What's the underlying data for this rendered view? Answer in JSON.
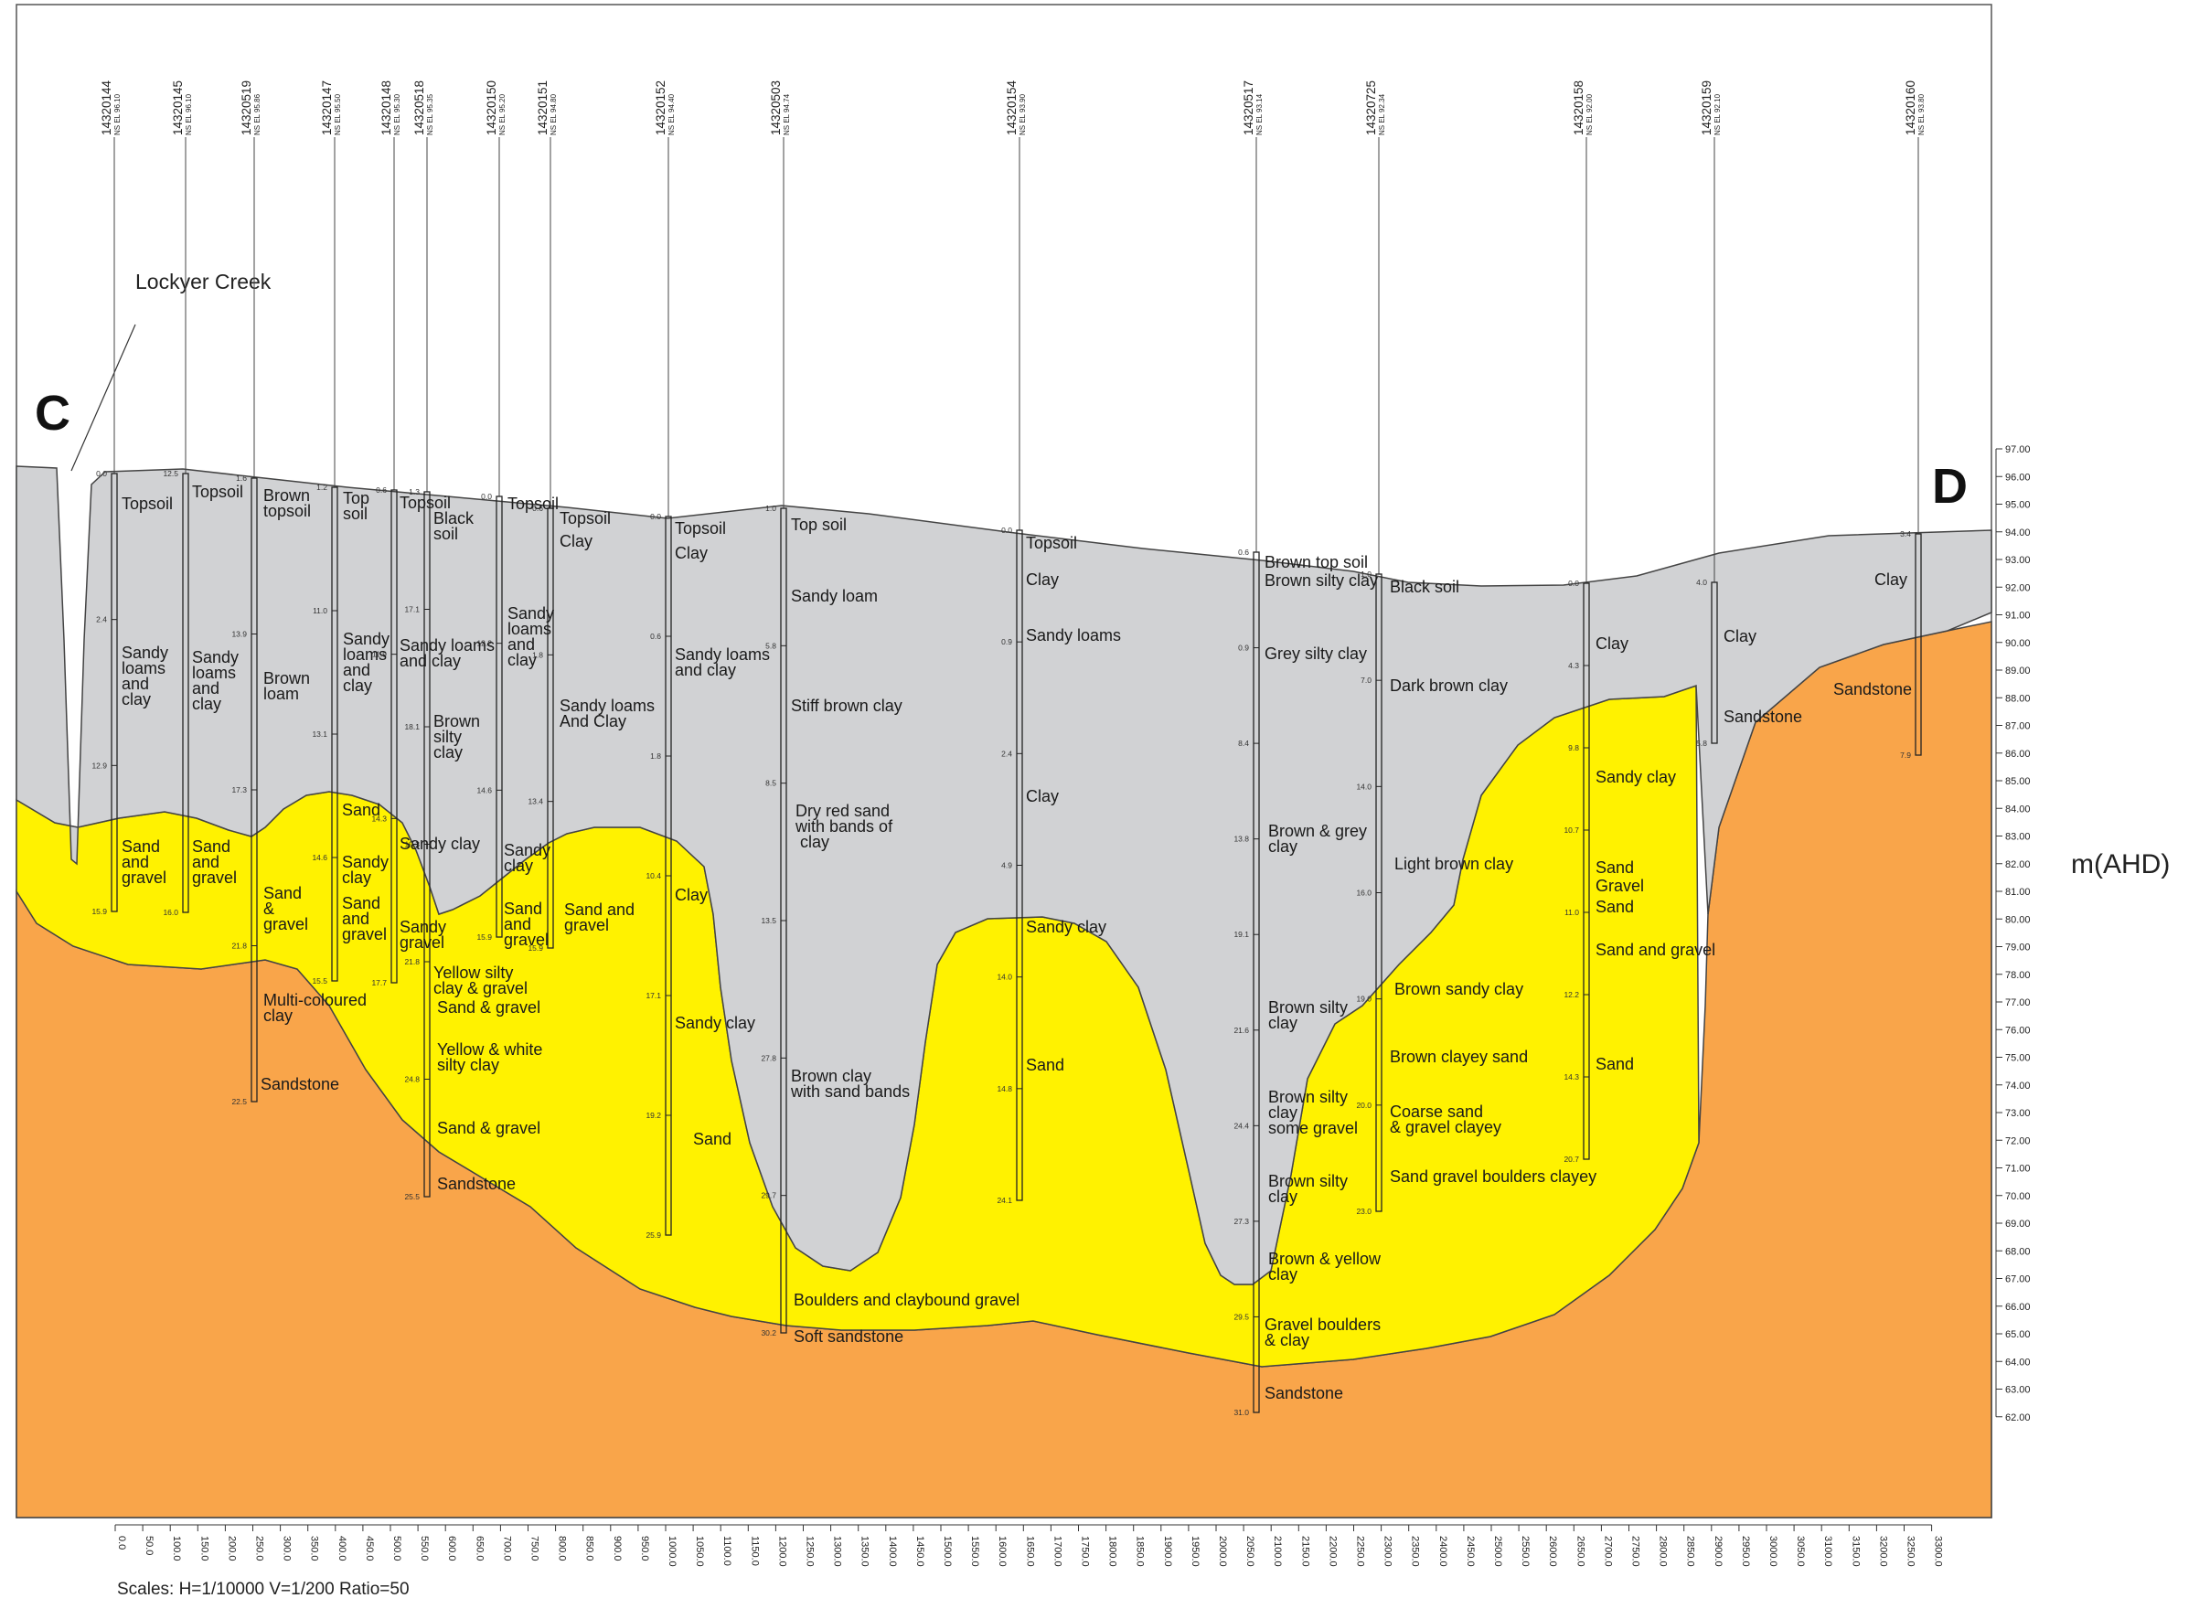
{
  "section": {
    "start_label": "C",
    "end_label": "D",
    "creek_label": "Lockyer Creek",
    "elevation_unit": "m(AHD)",
    "scales": "Scales: H=1/10000  V=1/200  Ratio=50",
    "elevation_ticks": [
      "97.00",
      "96.00",
      "95.00",
      "94.00",
      "93.00",
      "92.00",
      "91.00",
      "90.00",
      "89.00",
      "88.00",
      "87.00",
      "86.00",
      "85.00",
      "84.00",
      "83.00",
      "82.00",
      "81.00",
      "80.00",
      "79.00",
      "78.00",
      "77.00",
      "76.00",
      "75.00",
      "74.00",
      "73.00",
      "72.00",
      "71.00",
      "70.00",
      "69.00",
      "68.00",
      "67.00",
      "66.00",
      "65.00",
      "64.00",
      "63.00",
      "62.00"
    ],
    "distance_ticks": [
      "0.0",
      "50.0",
      "100.0",
      "150.0",
      "200.0",
      "250.0",
      "300.0",
      "350.0",
      "400.0",
      "450.0",
      "500.0",
      "550.0",
      "600.0",
      "650.0",
      "700.0",
      "750.0",
      "800.0",
      "850.0",
      "900.0",
      "950.0",
      "1000.0",
      "1050.0",
      "1100.0",
      "1150.0",
      "1200.0",
      "1250.0",
      "1300.0",
      "1350.0",
      "1400.0",
      "1450.0",
      "1500.0",
      "1550.0",
      "1600.0",
      "1650.0",
      "1700.0",
      "1750.0",
      "1800.0",
      "1850.0",
      "1900.0",
      "1950.0",
      "2000.0",
      "2050.0",
      "2100.0",
      "2150.0",
      "2200.0",
      "2250.0",
      "2300.0",
      "2350.0",
      "2400.0",
      "2450.0",
      "2500.0",
      "2550.0",
      "2600.0",
      "2650.0",
      "2700.0",
      "2750.0",
      "2800.0",
      "2850.0",
      "2900.0",
      "2950.0",
      "3000.0",
      "3050.0",
      "3100.0",
      "3150.0",
      "3200.0",
      "3250.0",
      "3300.0"
    ],
    "colors": {
      "clay_soil": "#d1d2d4",
      "sand_gravel": "#fff200",
      "sandstone": "#f9a54a",
      "outline": "#333333"
    }
  },
  "bores": [
    {
      "id": "14320144",
      "elev": "NS EL 96.10",
      "distance": 0,
      "depths": [
        "0.0",
        "2.4",
        "12.9",
        "15.9"
      ],
      "layers": [
        "Topsoil",
        "Sandy\nloams\nand\nclay",
        "Sand\nand\ngravel"
      ]
    },
    {
      "id": "14320145",
      "elev": "NS EL 96.10",
      "distance": 115,
      "depths": [
        "12.5",
        "16.0"
      ],
      "layers": [
        "Topsoil",
        "Sandy\nloams\nand\nclay",
        "Sand\nand\ngravel"
      ]
    },
    {
      "id": "14320519",
      "elev": "NS EL 95.86",
      "distance": 230,
      "depths": [
        "1.6",
        "13.9",
        "17.3",
        "21.8",
        "22.5"
      ],
      "layers": [
        "Brown\ntopsoil",
        "Brown\nloam",
        "Sand\n&\ngravel",
        "Multi-coloured\nclay",
        "Sandstone"
      ]
    },
    {
      "id": "14320147",
      "elev": "NS EL 95.50",
      "distance": 358,
      "depths": [
        "1.2",
        "11.0",
        "13.1",
        "14.6",
        "15.5"
      ],
      "layers": [
        "Top\nsoil",
        "Sandy\nloams\nand\nclay",
        "Sand",
        "Sandy\nclay",
        "Sand\nand\ngravel"
      ]
    },
    {
      "id": "14320148",
      "elev": "NS EL 95.30",
      "distance": 455,
      "depths": [
        "0.6",
        "11.9",
        "14.3",
        "17.7"
      ],
      "layers": [
        "Topsoil",
        "Sandy loams\nand clay",
        "Sandy clay",
        "Sandy\ngravel"
      ]
    },
    {
      "id": "14320518",
      "elev": "NS EL 95.35",
      "distance": 515,
      "depths": [
        "1.3",
        "17.1",
        "18.1",
        "19.3",
        "21.8",
        "24.8",
        "25.5"
      ],
      "layers": [
        "Black\nsoil",
        "Brown\nsilty\nclay",
        "Yellow silty\nclay & gravel",
        "Sand & gravel",
        "Yellow & white\nsilty clay",
        "Sand & gravel",
        "Sandstone"
      ]
    },
    {
      "id": "14320150",
      "elev": "NS EL 95.20",
      "distance": 640,
      "depths": [
        "0.0",
        "12.2",
        "14.6",
        "15.9"
      ],
      "layers": [
        "Topsoil",
        "Sandy\nloams\nand\nclay",
        "Sandy\nclay",
        "Sand\nand\ngravel"
      ]
    },
    {
      "id": "14320151",
      "elev": "NS EL 94.80",
      "distance": 725,
      "depths": [
        "0.6",
        "1.8",
        "13.4",
        "15.9"
      ],
      "layers": [
        "Topsoil",
        "Clay",
        "Sandy loams\nAnd Clay",
        "Sand and\ngravel"
      ]
    },
    {
      "id": "14320152",
      "elev": "NS EL 94.40",
      "distance": 918,
      "depths": [
        "0.0",
        "0.6",
        "1.8",
        "10.4",
        "17.1",
        "19.2",
        "25.9"
      ],
      "layers": [
        "Topsoil",
        "Clay",
        "Sandy loams\nand clay",
        "Clay",
        "Sandy clay",
        "Sand"
      ]
    },
    {
      "id": "14320503",
      "elev": "NS EL 94.74",
      "distance": 1105,
      "depths": [
        "1.0",
        "5.8",
        "8.5",
        "13.5",
        "27.8",
        "29.7",
        "30.2"
      ],
      "layers": [
        "Top soil",
        "Sandy loam",
        "Stiff brown clay",
        "Dry red sand\nwith bands of\n clay",
        "Brown clay\nwith sand bands",
        "Boulders and claybound gravel",
        "Soft sandstone"
      ]
    },
    {
      "id": "14320154",
      "elev": "NS EL 93.90",
      "distance": 1505,
      "depths": [
        "0.0",
        "0.9",
        "2.4",
        "4.9",
        "14.0",
        "14.8",
        "24.1"
      ],
      "layers": [
        "Topsoil",
        "Clay",
        "Sandy loams",
        "Clay",
        "Sandy clay",
        "Sand"
      ]
    },
    {
      "id": "14320517",
      "elev": "NS EL 93.14",
      "distance": 1908,
      "depths": [
        "0.6",
        "0.9",
        "8.4",
        "13.8",
        "19.1",
        "21.6",
        "24.4",
        "27.3",
        "29.5",
        "31.0"
      ],
      "layers": [
        "Brown top soil",
        "Brown silty clay",
        "Grey silty clay",
        "Brown & grey\nclay",
        "Brown silty\nclay",
        "Brown silty\nclay\nsome gravel",
        "Brown silty\nclay",
        "Brown & yellow\nclay",
        "Gravel  boulders\n& clay",
        "Sandstone"
      ]
    },
    {
      "id": "14320725",
      "elev": "NS EL 92.34",
      "distance": 2117,
      "depths": [
        "1.0",
        "7.0",
        "14.0",
        "16.0",
        "19.0",
        "20.0",
        "23.0"
      ],
      "layers": [
        "Black soil",
        "Dark brown clay",
        "Light brown clay",
        "Brown sandy clay",
        "Brown clayey sand",
        "Coarse sand\n& gravel clayey",
        "Sand gravel boulders clayey"
      ]
    },
    {
      "id": "14320158",
      "elev": "NS EL 92.00",
      "distance": 2465,
      "depths": [
        "0.0",
        "4.3",
        "9.8",
        "10.7",
        "11.0",
        "12.2",
        "14.3",
        "20.7"
      ],
      "layers": [
        "Clay",
        "Sandy clay",
        "Sand",
        "Gravel",
        "Sand",
        "Sand and gravel",
        "Sand"
      ]
    },
    {
      "id": "14320159",
      "elev": "NS EL 92.10",
      "distance": 2680,
      "depths": [
        "4.0",
        "5.8"
      ],
      "layers": [
        "Clay",
        "Sandstone"
      ]
    },
    {
      "id": "14320160",
      "elev": "NS EL 93.80",
      "distance": 3040,
      "depths": [
        "3.4",
        "7.9"
      ],
      "layers": [
        "Clay",
        "Sandstone"
      ]
    }
  ]
}
